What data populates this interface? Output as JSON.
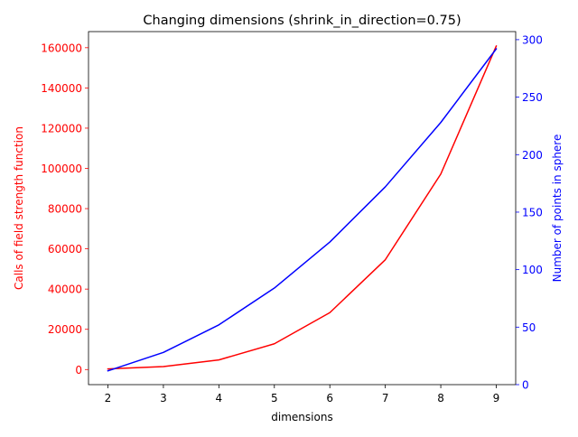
{
  "chart_data": {
    "type": "line",
    "title": "Changing dimensions (shrink_in_direction=0.75)",
    "xlabel": "dimensions",
    "x": [
      2,
      3,
      4,
      5,
      6,
      7,
      8,
      9
    ],
    "xticks": [
      2,
      3,
      4,
      5,
      6,
      7,
      8,
      9
    ],
    "xlim": [
      1.65,
      9.35
    ],
    "left_axis": {
      "label": "Calls of field strength function",
      "color": "#ff0000",
      "ylim": [
        -7500,
        168000
      ],
      "ticks": [
        0,
        20000,
        40000,
        60000,
        80000,
        100000,
        120000,
        140000,
        160000
      ]
    },
    "right_axis": {
      "label": "Number of points in sphere",
      "color": "#0000ff",
      "ylim": [
        0,
        307
      ],
      "ticks": [
        0,
        50,
        100,
        150,
        200,
        250,
        300
      ]
    },
    "series": [
      {
        "axis": "left",
        "color": "#ff0000",
        "values": [
          300,
          1500,
          4800,
          12800,
          28300,
          54600,
          97200,
          160800
        ]
      },
      {
        "axis": "right",
        "color": "#0000ff",
        "values": [
          12,
          28,
          52,
          84,
          124,
          172,
          228,
          292
        ]
      }
    ],
    "grid": false,
    "legend": "none"
  }
}
